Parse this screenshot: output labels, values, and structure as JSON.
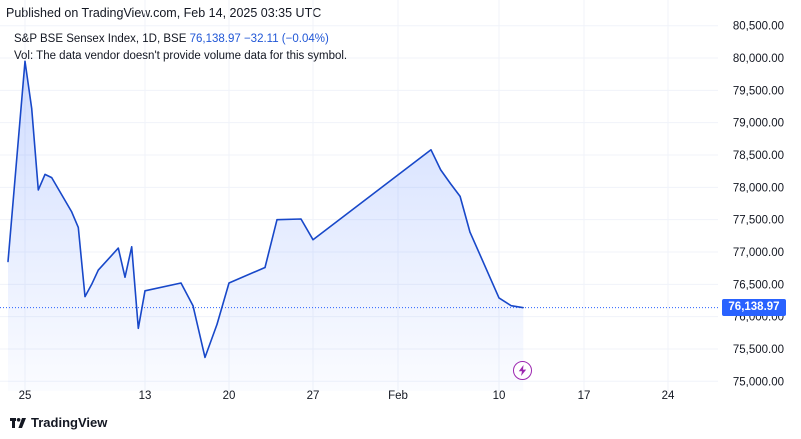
{
  "header": {
    "published": "Published on TradingView.com, Feb 14, 2025 03:35 UTC"
  },
  "legend": {
    "symbol": "S&P BSE Sensex Index, 1D, BSE",
    "last": "76,138.97",
    "change": "−32.11 (−0.04%)",
    "vol_note": "Vol: The data vendor doesn't provide volume data for this symbol."
  },
  "brand": {
    "name": "TradingView",
    "logo_icon": "tradingview-logo-icon"
  },
  "price_tag": "76,138.97",
  "event_icon": "flash-icon",
  "colors": {
    "line": "#1848c9",
    "price_tag": "#2962ff",
    "event": "#9c27b0"
  },
  "chart_data": {
    "type": "area",
    "title": "S&P BSE Sensex Index, 1D, BSE",
    "ylim": [
      74850,
      80650
    ],
    "y_ticks": [
      {
        "value": 80500,
        "label": "80,500.00"
      },
      {
        "value": 80000,
        "label": "80,000.00"
      },
      {
        "value": 79500,
        "label": "79,500.00"
      },
      {
        "value": 79000,
        "label": "79,000.00"
      },
      {
        "value": 78500,
        "label": "78,500.00"
      },
      {
        "value": 78000,
        "label": "78,000.00"
      },
      {
        "value": 77500,
        "label": "77,500.00"
      },
      {
        "value": 77000,
        "label": "77,000.00"
      },
      {
        "value": 76500,
        "label": "76,500.00"
      },
      {
        "value": 76000,
        "label": "76,000.00"
      },
      {
        "value": 75500,
        "label": "75,500.00"
      },
      {
        "value": 75000,
        "label": "75,000.00"
      }
    ],
    "x_ticks": [
      {
        "date": "2024-11-25",
        "label": "25"
      },
      {
        "date": "2024-12-13",
        "label": "13"
      },
      {
        "date": "2024-12-20",
        "label": "20"
      },
      {
        "date": "2024-12-27",
        "label": "27"
      },
      {
        "date": "2025-02-01",
        "label": "Feb"
      },
      {
        "date": "2025-02-10",
        "label": "10"
      },
      {
        "date": "2025-02-17",
        "label": "17"
      },
      {
        "date": "2025-02-24",
        "label": "24"
      }
    ],
    "series": [
      {
        "values": [
          {
            "x": "2024-11-22",
            "y": 76850
          },
          {
            "x": "2024-11-25",
            "y": 79950
          },
          {
            "x": "2024-11-26",
            "y": 79220
          },
          {
            "x": "2024-11-27",
            "y": 77960
          },
          {
            "x": "2024-11-28",
            "y": 78200
          },
          {
            "x": "2024-11-29",
            "y": 78150
          },
          {
            "x": "2024-12-02",
            "y": 77620
          },
          {
            "x": "2024-12-03",
            "y": 77380
          },
          {
            "x": "2024-12-04",
            "y": 76310
          },
          {
            "x": "2024-12-05",
            "y": 76500
          },
          {
            "x": "2024-12-06",
            "y": 76720
          },
          {
            "x": "2024-12-09",
            "y": 77060
          },
          {
            "x": "2024-12-10",
            "y": 76610
          },
          {
            "x": "2024-12-11",
            "y": 77080
          },
          {
            "x": "2024-12-12",
            "y": 75820
          },
          {
            "x": "2024-12-13",
            "y": 76400
          },
          {
            "x": "2024-12-16",
            "y": 76520
          },
          {
            "x": "2024-12-17",
            "y": 76170
          },
          {
            "x": "2024-12-18",
            "y": 75370
          },
          {
            "x": "2024-12-19",
            "y": 75880
          },
          {
            "x": "2024-12-20",
            "y": 76520
          },
          {
            "x": "2024-12-23",
            "y": 76760
          },
          {
            "x": "2024-12-24",
            "y": 77500
          },
          {
            "x": "2024-12-26",
            "y": 77510
          },
          {
            "x": "2024-12-27",
            "y": 77190
          },
          {
            "x": "2025-02-03",
            "y": 78580
          },
          {
            "x": "2025-02-04",
            "y": 78270
          },
          {
            "x": "2025-02-05",
            "y": 78060
          },
          {
            "x": "2025-02-06",
            "y": 77860
          },
          {
            "x": "2025-02-07",
            "y": 77310
          },
          {
            "x": "2025-02-10",
            "y": 76290
          },
          {
            "x": "2025-02-11",
            "y": 76170
          },
          {
            "x": "2025-02-12",
            "y": 76138.97
          }
        ]
      }
    ],
    "last_value": 76138.97,
    "legend": "top-left",
    "grid": true
  }
}
